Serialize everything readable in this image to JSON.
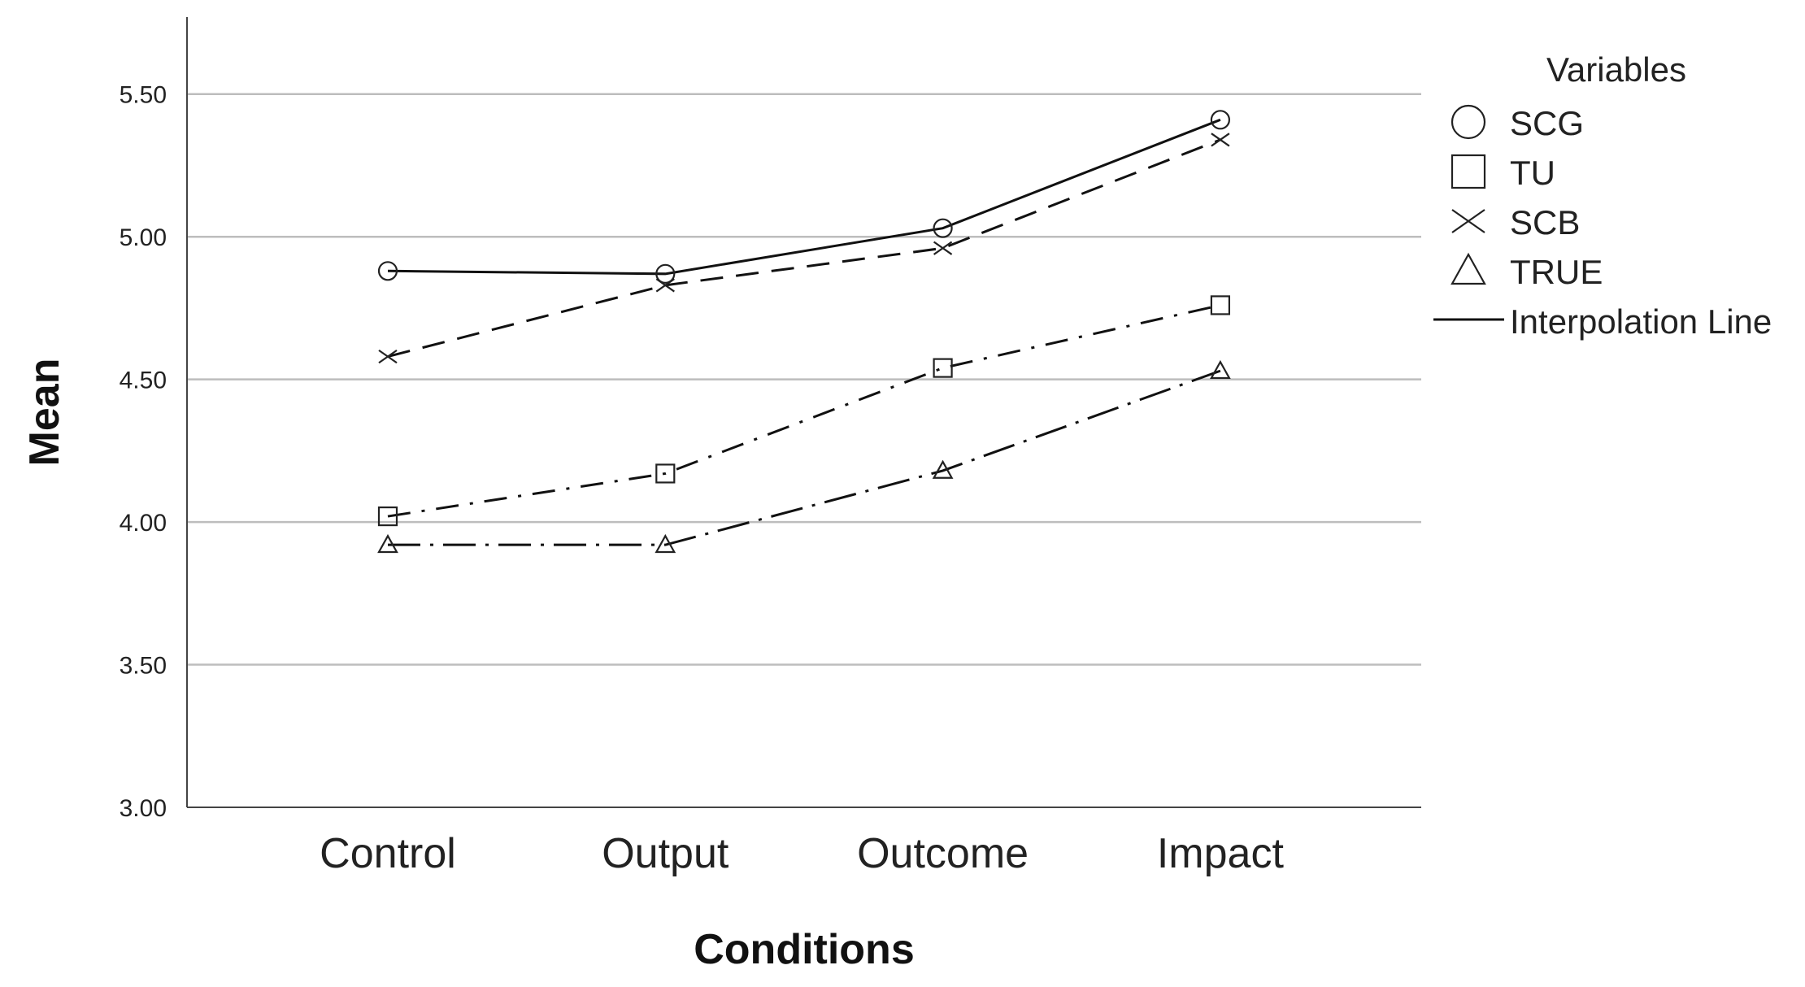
{
  "chart_data": {
    "type": "line",
    "title": "",
    "xlabel": "Conditions",
    "ylabel": "Mean",
    "categories": [
      "Control",
      "Output",
      "Outcome",
      "Impact"
    ],
    "ylim": [
      3.0,
      5.77
    ],
    "yticks": [
      "3.00",
      "3.50",
      "4.00",
      "4.50",
      "5.00",
      "5.50"
    ],
    "grid": true,
    "legend": {
      "title": "Variables",
      "position": "right",
      "interpolation_label": "Interpolation Line"
    },
    "series": [
      {
        "name": "SCG",
        "marker": "circle",
        "dash": "solid",
        "values": [
          4.88,
          4.87,
          5.03,
          5.41
        ]
      },
      {
        "name": "TU",
        "marker": "square",
        "dash": "dash-dot",
        "values": [
          4.02,
          4.17,
          4.54,
          4.76
        ]
      },
      {
        "name": "SCB",
        "marker": "x",
        "dash": "dashed",
        "values": [
          4.58,
          4.83,
          4.96,
          5.34
        ]
      },
      {
        "name": "TRUE",
        "marker": "triangle",
        "dash": "long-dash-dot",
        "values": [
          3.92,
          3.92,
          4.18,
          4.53
        ]
      }
    ]
  }
}
